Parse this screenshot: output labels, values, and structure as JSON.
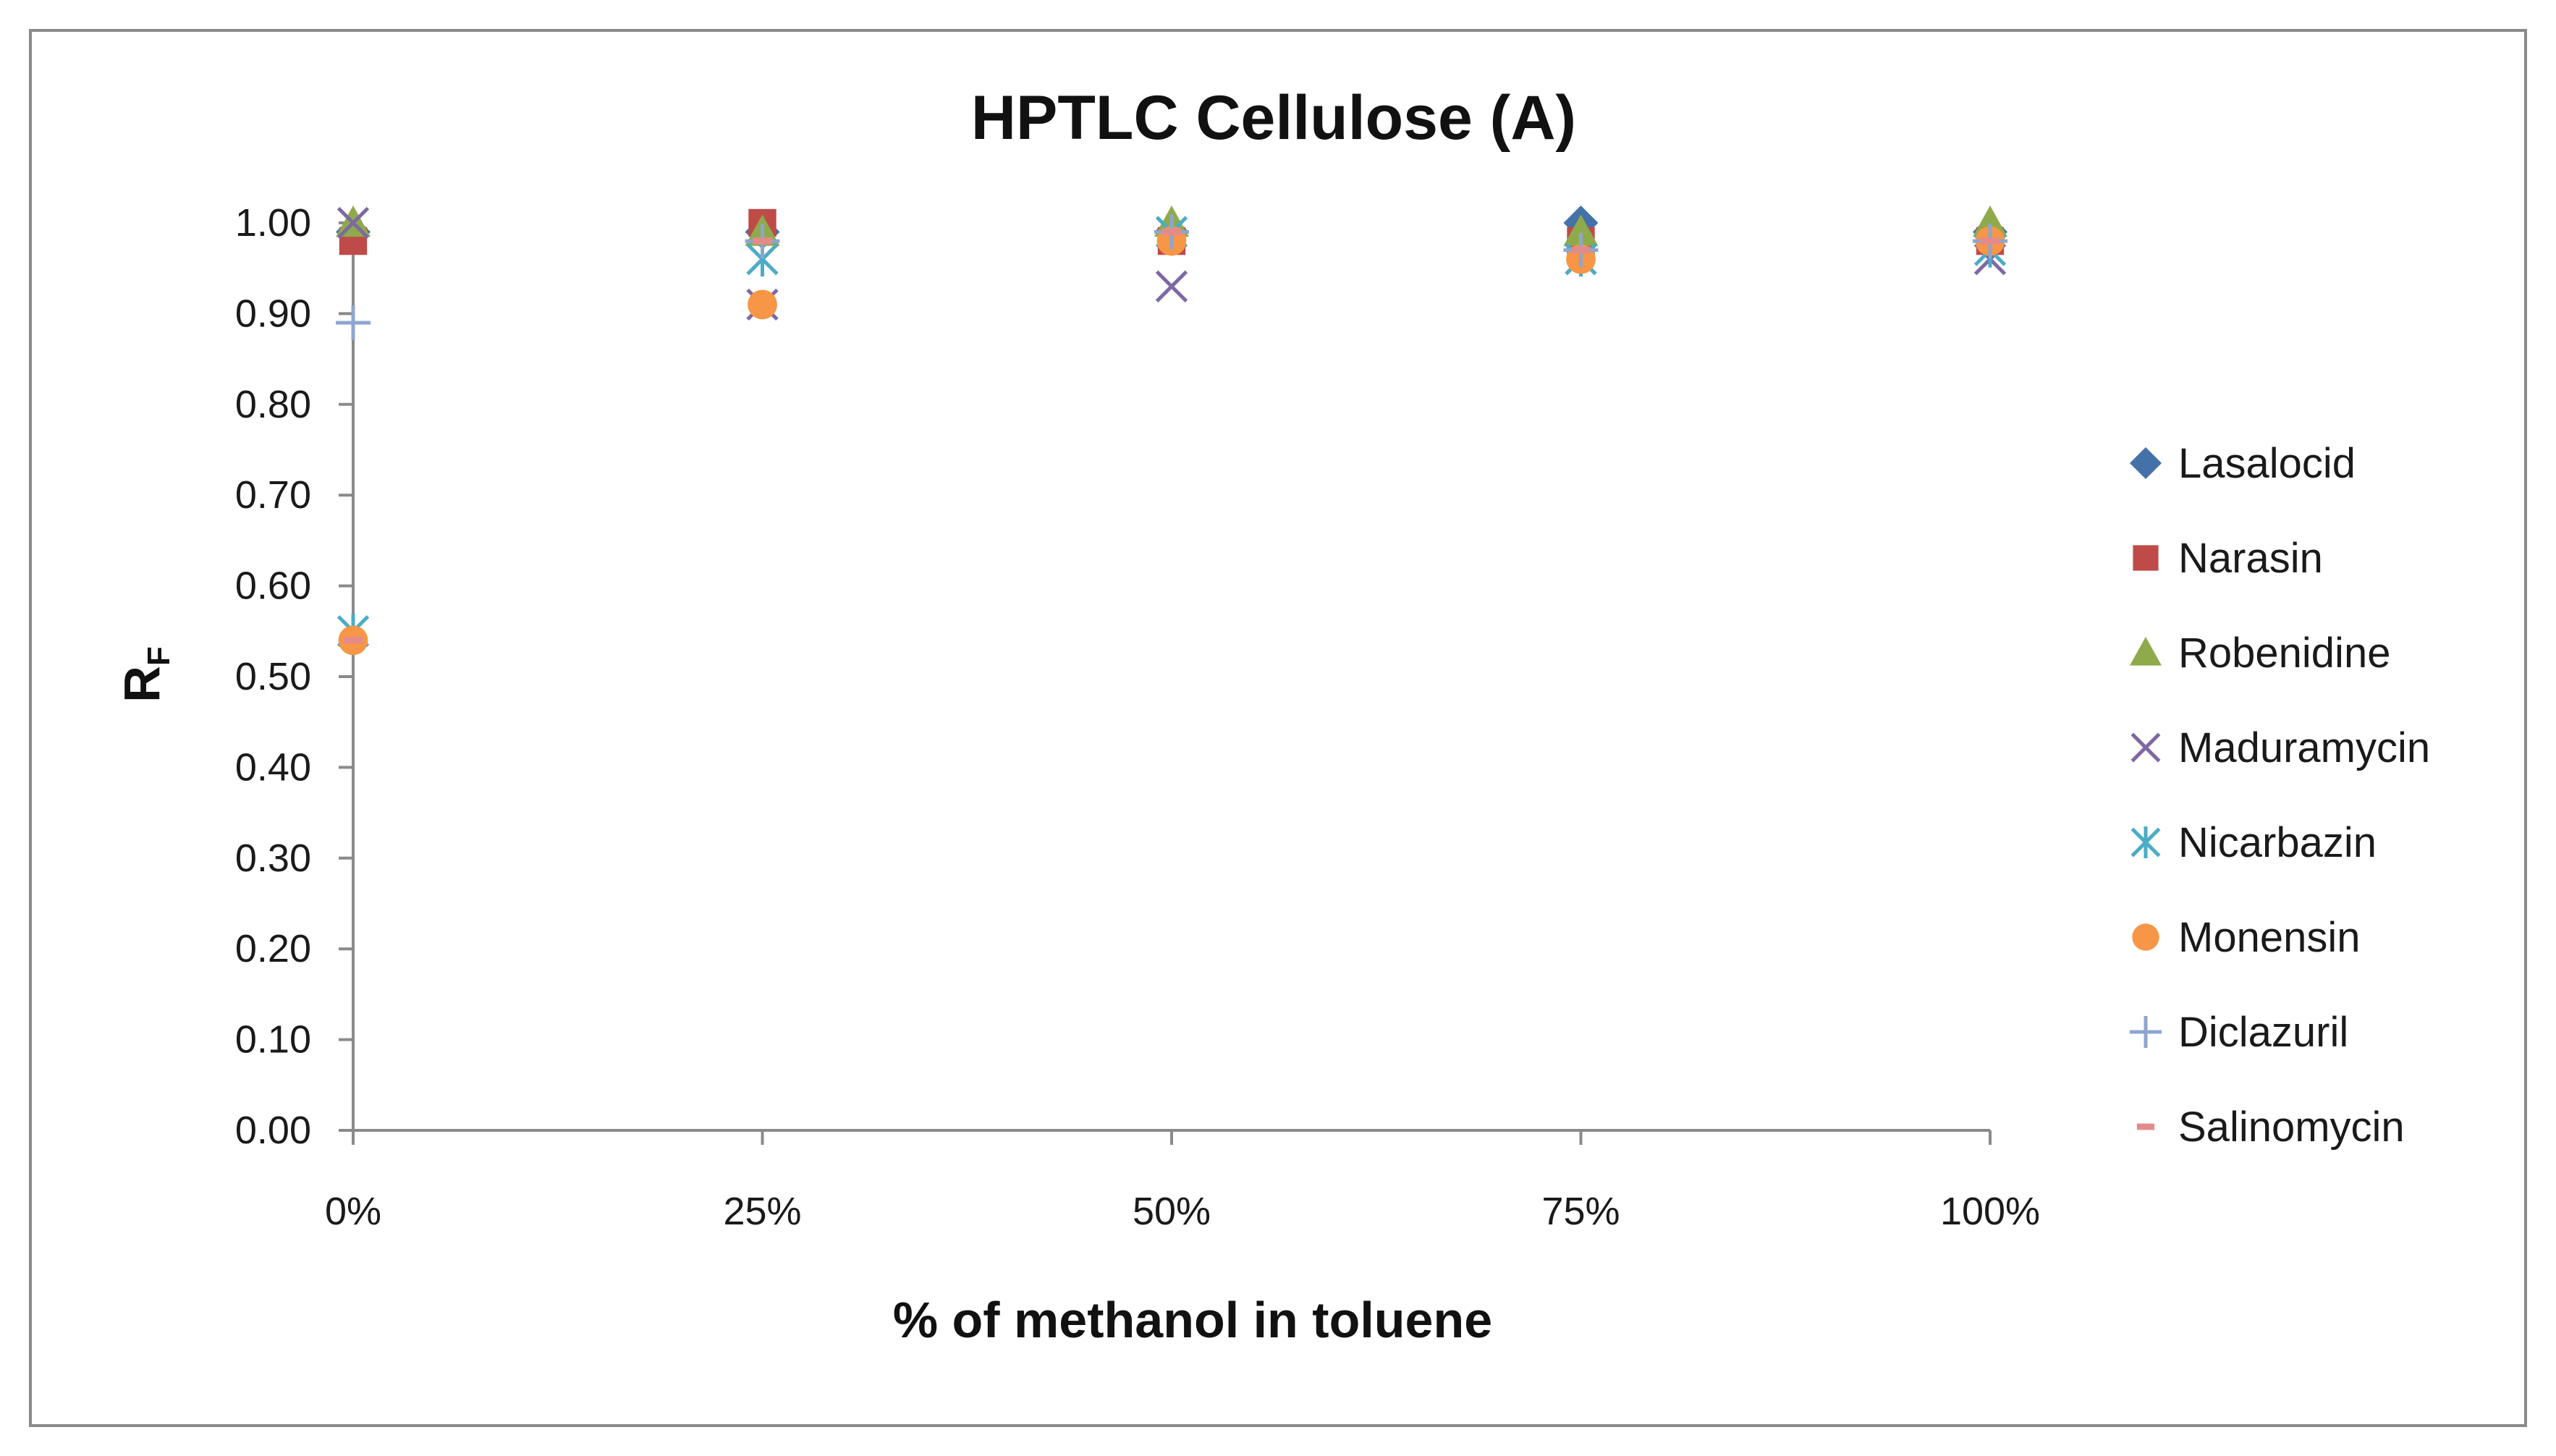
{
  "chart_data": {
    "type": "scatter",
    "title": "HPTLC Cellulose (A)",
    "xlabel": "% of methanol in toluene",
    "ylabel": "R",
    "ylabel_subscript": "F",
    "categories": [
      "0%",
      "25%",
      "50%",
      "75%",
      "100%"
    ],
    "y_ticks": [
      "0.00",
      "0.10",
      "0.20",
      "0.30",
      "0.40",
      "0.50",
      "0.60",
      "0.70",
      "0.80",
      "0.90",
      "1.00"
    ],
    "ylim": [
      0,
      1.0
    ],
    "grid": false,
    "legend_position": "right",
    "series": [
      {
        "name": "Lasalocid",
        "color": "#4472a8",
        "marker": "diamond",
        "values": [
          0.99,
          0.99,
          0.99,
          1.0,
          0.99
        ]
      },
      {
        "name": "Narasin",
        "color": "#be4b48",
        "marker": "square",
        "values": [
          0.98,
          1.0,
          0.98,
          0.98,
          0.98
        ]
      },
      {
        "name": "Robenidine",
        "color": "#8faa4b",
        "marker": "triangle",
        "values": [
          1.0,
          0.99,
          1.0,
          0.99,
          1.0
        ]
      },
      {
        "name": "Maduramycin",
        "color": "#7e69a3",
        "marker": "x",
        "values": [
          1.0,
          0.91,
          0.93,
          0.96,
          0.96
        ]
      },
      {
        "name": "Nicarbazin",
        "color": "#4bacc6",
        "marker": "star",
        "values": [
          0.55,
          0.96,
          0.99,
          0.96,
          0.97
        ]
      },
      {
        "name": "Monensin",
        "color": "#f79646",
        "marker": "circle",
        "values": [
          0.54,
          0.91,
          0.98,
          0.96,
          0.98
        ]
      },
      {
        "name": "Diclazuril",
        "color": "#8ea5cf",
        "marker": "plus",
        "values": [
          0.89,
          0.98,
          0.99,
          0.97,
          0.98
        ]
      },
      {
        "name": "Salinomycin",
        "color": "#e48b8a",
        "marker": "dash",
        "values": [
          0.54,
          0.98,
          0.99,
          0.97,
          0.98
        ]
      }
    ]
  }
}
